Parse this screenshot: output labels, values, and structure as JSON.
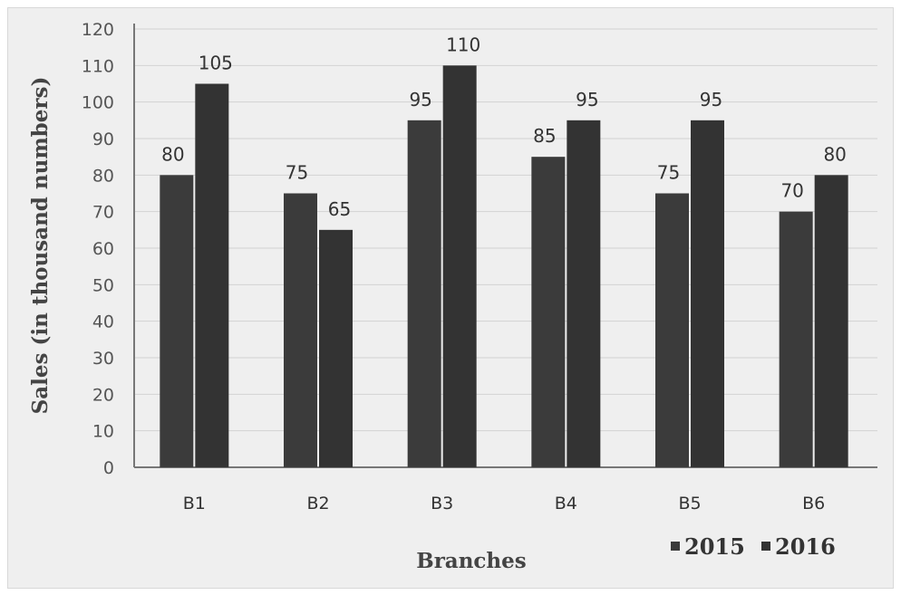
{
  "chart_data": {
    "type": "bar",
    "categories": [
      "B1",
      "B2",
      "B3",
      "B4",
      "B5",
      "B6"
    ],
    "series": [
      {
        "name": "2015",
        "values": [
          80,
          75,
          95,
          85,
          75,
          70
        ],
        "color": "#3b3b3b"
      },
      {
        "name": "2016",
        "values": [
          105,
          65,
          110,
          95,
          95,
          80
        ],
        "color": "#333333"
      }
    ],
    "data_labels": {
      "2015": [
        "80",
        "75",
        "95",
        "85",
        "75",
        "70"
      ],
      "2016": [
        "105",
        "65",
        "110",
        "95",
        "95",
        "80"
      ]
    },
    "title": "",
    "xlabel": "Branches",
    "ylabel": "Sales (in thousand numbers)",
    "ylim": [
      0,
      120
    ],
    "yticks": [
      0,
      10,
      20,
      30,
      40,
      50,
      60,
      70,
      80,
      90,
      100,
      110,
      120
    ],
    "grid": true,
    "legend_position": "bottom-right"
  }
}
